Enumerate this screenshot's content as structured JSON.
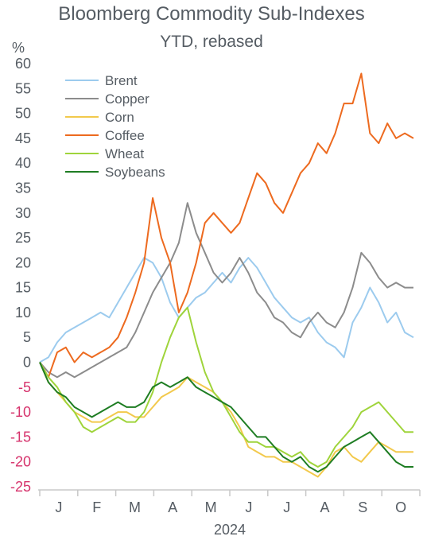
{
  "title": "Bloomberg Commodity Sub-Indexes",
  "subtitle": "YTD, rebased",
  "chart_data": {
    "type": "line",
    "title": "Bloomberg Commodity Sub-Indexes",
    "subtitle": "YTD, rebased",
    "ylabel": "%",
    "xlabel": "2024",
    "ylim": [
      -25,
      60
    ],
    "yticks": [
      60,
      55,
      50,
      45,
      40,
      35,
      30,
      25,
      20,
      15,
      10,
      5,
      0,
      -5,
      -10,
      -15,
      -20,
      -25
    ],
    "ytick_labels": [
      "60",
      "55",
      "50",
      "45",
      "40",
      "35",
      "30",
      "25",
      "20",
      "15",
      "10",
      "5",
      "0",
      "-5",
      "-10",
      "-15",
      "-20",
      "-25"
    ],
    "negative_tick_color": "#d6336c",
    "positive_tick_color": "#555c63",
    "x_months": [
      "J",
      "F",
      "M",
      "A",
      "M",
      "J",
      "J",
      "A",
      "S",
      "O"
    ],
    "x_year": "2024",
    "x_range_weeks": [
      0,
      43
    ],
    "grid": false,
    "legend_position": "top-left",
    "series": [
      {
        "name": "Brent",
        "color": "#9ccbee",
        "x": [
          0,
          1,
          2,
          3,
          4,
          5,
          6,
          7,
          8,
          9,
          10,
          11,
          12,
          13,
          14,
          15,
          16,
          17,
          18,
          19,
          20,
          21,
          22,
          23,
          24,
          25,
          26,
          27,
          28,
          29,
          30,
          31,
          32,
          33,
          34,
          35,
          36,
          37,
          38,
          39,
          40,
          41,
          42,
          43
        ],
        "values": [
          0,
          1,
          4,
          6,
          7,
          8,
          9,
          10,
          9,
          12,
          15,
          18,
          21,
          20,
          17,
          12,
          9,
          11,
          13,
          14,
          16,
          18,
          16,
          19,
          21,
          19,
          16,
          13,
          11,
          9,
          8,
          9,
          6,
          4,
          3,
          1,
          8,
          11,
          15,
          12,
          8,
          10,
          6,
          5
        ]
      },
      {
        "name": "Copper",
        "color": "#8c8c8c",
        "x": [
          0,
          1,
          2,
          3,
          4,
          5,
          6,
          7,
          8,
          9,
          10,
          11,
          12,
          13,
          14,
          15,
          16,
          17,
          18,
          19,
          20,
          21,
          22,
          23,
          24,
          25,
          26,
          27,
          28,
          29,
          30,
          31,
          32,
          33,
          34,
          35,
          36,
          37,
          38,
          39,
          40,
          41,
          42,
          43
        ],
        "values": [
          0,
          -2,
          -3,
          -2,
          -3,
          -2,
          -1,
          0,
          1,
          2,
          3,
          6,
          10,
          14,
          17,
          20,
          24,
          32,
          26,
          22,
          18,
          16,
          18,
          21,
          18,
          14,
          12,
          9,
          8,
          6,
          5,
          8,
          10,
          8,
          7,
          10,
          15,
          22,
          20,
          17,
          15,
          16,
          15,
          15
        ]
      },
      {
        "name": "Corn",
        "color": "#f2c94c",
        "x": [
          0,
          1,
          2,
          3,
          4,
          5,
          6,
          7,
          8,
          9,
          10,
          11,
          12,
          13,
          14,
          15,
          16,
          17,
          18,
          19,
          20,
          21,
          22,
          23,
          24,
          25,
          26,
          27,
          28,
          29,
          30,
          31,
          32,
          33,
          34,
          35,
          36,
          37,
          38,
          39,
          40,
          41,
          42,
          43
        ],
        "values": [
          0,
          -4,
          -6,
          -8,
          -10,
          -11,
          -12,
          -12,
          -11,
          -10,
          -10,
          -11,
          -11,
          -9,
          -7,
          -6,
          -5,
          -3,
          -4,
          -5,
          -6,
          -8,
          -10,
          -13,
          -17,
          -18,
          -19,
          -19,
          -20,
          -20,
          -21,
          -22,
          -23,
          -21,
          -18,
          -17,
          -19,
          -20,
          -18,
          -16,
          -17,
          -18,
          -18,
          -18
        ]
      },
      {
        "name": "Coffee",
        "color": "#ed6a1f",
        "x": [
          0,
          1,
          2,
          3,
          4,
          5,
          6,
          7,
          8,
          9,
          10,
          11,
          12,
          13,
          14,
          15,
          16,
          17,
          18,
          19,
          20,
          21,
          22,
          23,
          24,
          25,
          26,
          27,
          28,
          29,
          30,
          31,
          32,
          33,
          34,
          35,
          36,
          37,
          38,
          39,
          40,
          41,
          42,
          43
        ],
        "values": [
          0,
          -3,
          2,
          3,
          0,
          2,
          1,
          2,
          3,
          5,
          9,
          14,
          20,
          33,
          25,
          20,
          10,
          14,
          20,
          28,
          30,
          28,
          26,
          28,
          33,
          38,
          36,
          32,
          30,
          34,
          38,
          40,
          44,
          42,
          46,
          52,
          52,
          58,
          46,
          44,
          48,
          45,
          46,
          45
        ]
      },
      {
        "name": "Wheat",
        "color": "#9fd43b",
        "x": [
          0,
          1,
          2,
          3,
          4,
          5,
          6,
          7,
          8,
          9,
          10,
          11,
          12,
          13,
          14,
          15,
          16,
          17,
          18,
          19,
          20,
          21,
          22,
          23,
          24,
          25,
          26,
          27,
          28,
          29,
          30,
          31,
          32,
          33,
          34,
          35,
          36,
          37,
          38,
          39,
          40,
          41,
          42,
          43
        ],
        "values": [
          0,
          -3,
          -5,
          -8,
          -10,
          -13,
          -14,
          -13,
          -12,
          -11,
          -12,
          -12,
          -10,
          -6,
          0,
          5,
          9,
          11,
          4,
          -2,
          -6,
          -8,
          -11,
          -14,
          -16,
          -16,
          -17,
          -17,
          -18,
          -19,
          -18,
          -20,
          -21,
          -20,
          -17,
          -15,
          -13,
          -10,
          -9,
          -8,
          -10,
          -12,
          -14,
          -14
        ]
      },
      {
        "name": "Soybeans",
        "color": "#1e7d23",
        "x": [
          0,
          1,
          2,
          3,
          4,
          5,
          6,
          7,
          8,
          9,
          10,
          11,
          12,
          13,
          14,
          15,
          16,
          17,
          18,
          19,
          20,
          21,
          22,
          23,
          24,
          25,
          26,
          27,
          28,
          29,
          30,
          31,
          32,
          33,
          34,
          35,
          36,
          37,
          38,
          39,
          40,
          41,
          42,
          43
        ],
        "values": [
          0,
          -4,
          -6,
          -7,
          -9,
          -10,
          -11,
          -10,
          -9,
          -8,
          -9,
          -9,
          -8,
          -5,
          -4,
          -5,
          -4,
          -3,
          -5,
          -6,
          -7,
          -8,
          -9,
          -11,
          -13,
          -15,
          -15,
          -17,
          -19,
          -20,
          -19,
          -21,
          -22,
          -21,
          -19,
          -17,
          -16,
          -15,
          -14,
          -16,
          -18,
          -20,
          -21,
          -21
        ]
      }
    ]
  }
}
